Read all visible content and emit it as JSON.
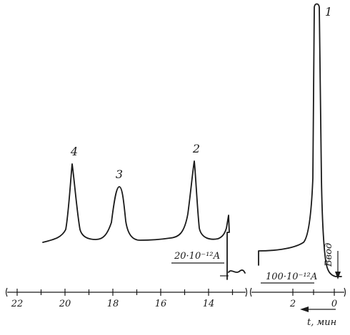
{
  "chart_data": {
    "type": "line",
    "title": "",
    "xlabel": "t, мин",
    "xlim": [
      23,
      -0.5
    ],
    "reversed_x": true,
    "ticks_left": [
      "22",
      "20",
      "18",
      "16",
      "14"
    ],
    "ticks_right": [
      "2",
      "0"
    ],
    "peaks": [
      {
        "label": "4",
        "t": 19.6
      },
      {
        "label": "3",
        "t": 17.5
      },
      {
        "label": "2",
        "t": 14.1
      },
      {
        "label": "1",
        "t": 0.6
      }
    ],
    "annotations": {
      "injection": "Ввод",
      "scale_left": "20·10⁻¹²А",
      "scale_right": "100·10⁻¹²А"
    }
  }
}
